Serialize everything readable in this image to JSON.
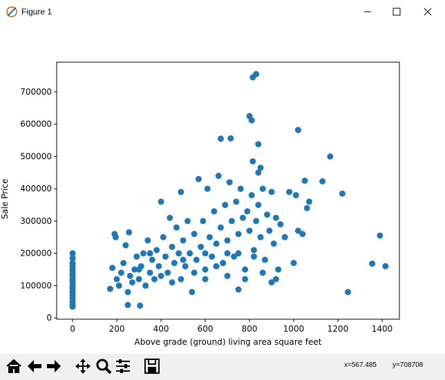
{
  "window": {
    "title": "Figure 1"
  },
  "status": {
    "x": "x=567.485",
    "y": "y=708708"
  },
  "chart_data": {
    "type": "scatter",
    "x_label": "Above grade (ground) living area square feet",
    "y_label": "Sale Price",
    "color": "#1f77b4",
    "xlim": [
      -72,
      1478
    ],
    "ylim": [
      -4000,
      792000
    ],
    "xticks": [
      0,
      200,
      400,
      600,
      800,
      1000,
      1200,
      1400
    ],
    "yticks": [
      0,
      100000,
      200000,
      300000,
      400000,
      500000,
      600000,
      700000
    ],
    "x": [
      830,
      815,
      800,
      810,
      1020,
      670,
      715,
      840,
      1165,
      815,
      850,
      840,
      1130,
      1220,
      1050,
      1355,
      1390,
      1415,
      1245,
      750,
      305,
      250,
      0,
      0,
      0,
      0,
      0,
      0,
      0,
      0,
      0,
      0,
      0,
      0,
      0,
      0,
      0,
      0,
      0,
      0,
      0,
      0,
      170,
      180,
      190,
      195,
      200,
      210,
      220,
      230,
      240,
      250,
      255,
      260,
      270,
      280,
      290,
      300,
      310,
      320,
      330,
      340,
      350,
      360,
      370,
      380,
      390,
      400,
      400,
      410,
      420,
      430,
      440,
      450,
      460,
      470,
      480,
      490,
      490,
      500,
      510,
      520,
      530,
      540,
      550,
      560,
      570,
      580,
      590,
      600,
      610,
      620,
      630,
      640,
      650,
      660,
      670,
      680,
      690,
      700,
      710,
      720,
      730,
      740,
      750,
      760,
      770,
      780,
      790,
      800,
      810,
      820,
      830,
      840,
      850,
      860,
      870,
      880,
      890,
      900,
      910,
      920,
      930,
      940,
      960,
      980,
      1000,
      1010,
      1020,
      1040,
      1060,
      1070,
      900,
      920,
      860,
      820,
      780,
      700,
      650,
      600,
      550,
      450,
      350,
      300,
      500,
      600,
      700,
      750
    ],
    "values": [
      755000,
      745000,
      625000,
      612000,
      582000,
      555000,
      556000,
      538000,
      500000,
      485000,
      465000,
      450000,
      423000,
      385000,
      425000,
      168000,
      255000,
      160000,
      80000,
      88000,
      38000,
      40000,
      200000,
      185000,
      160000,
      145000,
      130000,
      120000,
      110000,
      100000,
      90000,
      80000,
      70000,
      60000,
      50000,
      40000,
      35000,
      150000,
      170000,
      95000,
      115000,
      135000,
      90000,
      155000,
      260000,
      250000,
      120000,
      100000,
      140000,
      170000,
      225000,
      80000,
      265000,
      130000,
      110000,
      150000,
      190000,
      120000,
      160000,
      200000,
      100000,
      240000,
      140000,
      180000,
      120000,
      210000,
      160000,
      360000,
      130000,
      250000,
      190000,
      140000,
      310000,
      220000,
      170000,
      280000,
      200000,
      390000,
      120000,
      240000,
      160000,
      300000,
      200000,
      80000,
      260000,
      180000,
      430000,
      220000,
      300000,
      150000,
      400000,
      250000,
      190000,
      330000,
      230000,
      440000,
      280000,
      170000,
      350000,
      240000,
      420000,
      300000,
      190000,
      360000,
      260000,
      400000,
      310000,
      150000,
      330000,
      270000,
      380000,
      210000,
      300000,
      350000,
      250000,
      400000,
      180000,
      320000,
      270000,
      390000,
      230000,
      310000,
      150000,
      290000,
      250000,
      390000,
      170000,
      380000,
      270000,
      260000,
      340000,
      360000,
      110000,
      120000,
      140000,
      190000,
      120000,
      130000,
      160000,
      120000,
      140000,
      110000,
      200000,
      150000,
      180000,
      200000,
      200000,
      200000
    ]
  }
}
